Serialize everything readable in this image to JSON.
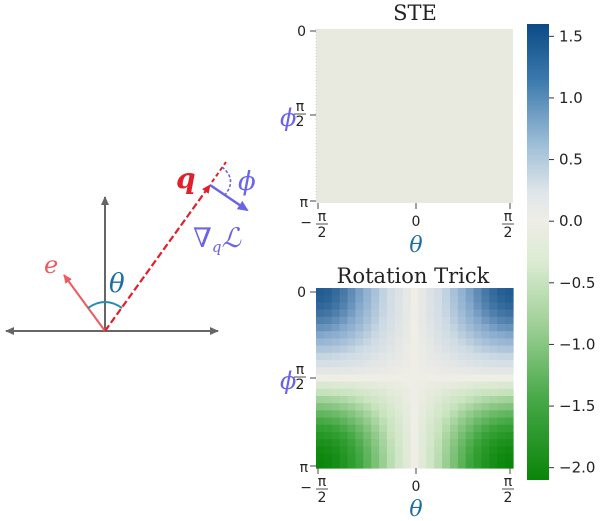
{
  "diagram": {
    "labels": {
      "q": "q",
      "phi": "ϕ",
      "theta": "θ",
      "e": "e",
      "grad_nabla": "∇",
      "grad_sub": "q",
      "grad_loss": "ℒ"
    },
    "colors": {
      "axis": "#666666",
      "q_vector": "#e0202b",
      "e_vector": "#ee5a60",
      "gradient": "#6b63e8",
      "theta_arc": "#2a8bb0"
    }
  },
  "panels": [
    {
      "title": "STE",
      "y_axis_label": "ϕ",
      "x_axis_label": "θ",
      "y_ticks": [
        "0",
        "π/2",
        "π"
      ],
      "x_ticks": [
        "−π/2",
        "0",
        "π/2"
      ],
      "uniform_value": 0.0
    },
    {
      "title": "Rotation Trick",
      "y_axis_label": "ϕ",
      "x_axis_label": "θ",
      "y_ticks": [
        "0",
        "π/2",
        "π"
      ],
      "x_ticks": [
        "−π/2",
        "0",
        "π/2"
      ]
    }
  ],
  "colorbar": {
    "min": -2.1,
    "max": 1.6,
    "ticks": [
      "1.5",
      "1.0",
      "0.5",
      "0.0",
      "−0.5",
      "−1.0",
      "−1.5",
      "−2.0"
    ],
    "colors": {
      "high": "#08457e",
      "mid": "#eeede6",
      "low": "#0a8a0a"
    }
  }
}
